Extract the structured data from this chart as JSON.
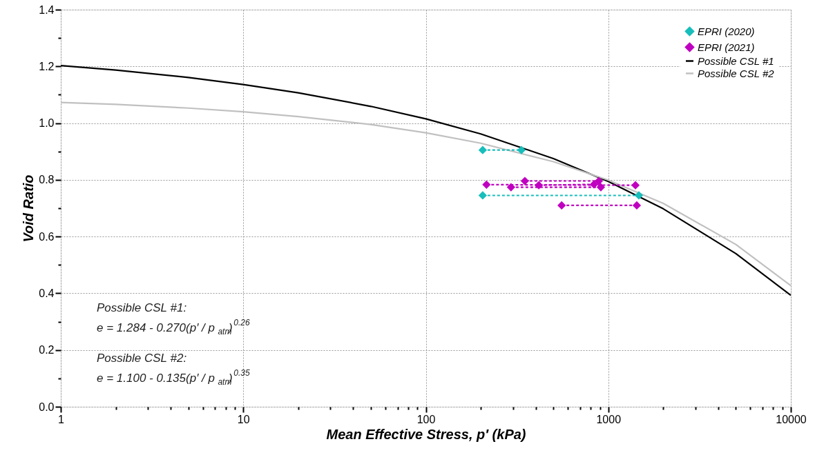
{
  "chart_data": {
    "type": "line",
    "xlabel": "Mean Effective Stress, p′ (kPa)",
    "ylabel": "Void Ratio",
    "log": "x",
    "xlim": [
      1,
      10000
    ],
    "ylim": [
      0,
      1.4
    ],
    "xticks": [
      1,
      {
        "value": 2,
        "label": null
      },
      {
        "value": 3,
        "label": null
      },
      {
        "value": 4,
        "label": null
      },
      {
        "value": 5,
        "label": null
      },
      {
        "value": 6,
        "label": null
      },
      {
        "value": 7,
        "label": null
      },
      {
        "value": 8,
        "label": null
      },
      {
        "value": 9,
        "label": null
      },
      10,
      {
        "value": 20,
        "label": null
      },
      {
        "value": 30,
        "label": null
      },
      {
        "value": 40,
        "label": null
      },
      {
        "value": 50,
        "label": null
      },
      {
        "value": 60,
        "label": null
      },
      {
        "value": 70,
        "label": null
      },
      {
        "value": 80,
        "label": null
      },
      {
        "value": 90,
        "label": null
      },
      100,
      {
        "value": 200,
        "label": null
      },
      {
        "value": 300,
        "label": null
      },
      {
        "value": 400,
        "label": null
      },
      {
        "value": 500,
        "label": null
      },
      {
        "value": 600,
        "label": null
      },
      {
        "value": 700,
        "label": null
      },
      {
        "value": 800,
        "label": null
      },
      {
        "value": 900,
        "label": null
      },
      1000,
      {
        "value": 2000,
        "label": null
      },
      {
        "value": 3000,
        "label": null
      },
      {
        "value": 4000,
        "label": null
      },
      {
        "value": 5000,
        "label": null
      },
      {
        "value": 6000,
        "label": null
      },
      {
        "value": 7000,
        "label": null
      },
      {
        "value": 8000,
        "label": null
      },
      {
        "value": 9000,
        "label": null
      },
      10000
    ],
    "yticks": [
      {
        "value": 0,
        "label": "0.0"
      },
      {
        "value": 0.1,
        "label": null
      },
      {
        "value": 0.2,
        "label": "0.2"
      },
      {
        "value": 0.3,
        "label": null
      },
      {
        "value": 0.4,
        "label": "0.4"
      },
      {
        "value": 0.5,
        "label": null
      },
      {
        "value": 0.6,
        "label": "0.6"
      },
      {
        "value": 0.7,
        "label": null
      },
      {
        "value": 0.8,
        "label": "0.8"
      },
      {
        "value": 0.9,
        "label": null
      },
      {
        "value": 1.0,
        "label": "1.0"
      },
      {
        "value": 1.1,
        "label": null
      },
      {
        "value": 1.2,
        "label": "1.2"
      },
      {
        "value": 1.3,
        "label": null
      },
      {
        "value": 1.4,
        "label": "1.4"
      }
    ],
    "grid": true,
    "legend": "top right",
    "series": [
      {
        "name": "EPRI (2020)",
        "color": "#17bebb",
        "marker": "diamond",
        "line_style": "dashed",
        "x": [
          205,
          334,
          null,
          205,
          1470
        ],
        "values": [
          0.905,
          0.905,
          null,
          0.745,
          0.745
        ]
      },
      {
        "name": "EPRI (2021)",
        "color": "#c000c0",
        "marker": "diamond",
        "line_style": "dashed",
        "x": [
          215,
          1408,
          null,
          293,
          910,
          null,
          349,
          887,
          null,
          416,
          834,
          null,
          555,
          1432
        ],
        "values": [
          0.783,
          0.781,
          null,
          0.774,
          0.774,
          null,
          0.796,
          0.796,
          null,
          0.781,
          0.784,
          null,
          0.71,
          0.71
        ]
      },
      {
        "name": "Possible CSL #1",
        "color": "#000000",
        "line_style": "solid",
        "x": [
          1,
          2,
          5,
          10,
          20,
          50,
          100,
          200,
          500,
          1000,
          2000,
          5000,
          10000
        ],
        "values": [
          1.203,
          1.187,
          1.161,
          1.136,
          1.107,
          1.059,
          1.015,
          0.962,
          0.875,
          0.794,
          0.698,
          0.54,
          0.393
        ]
      },
      {
        "name": "Possible CSL #2",
        "color": "#c0c0c0",
        "line_style": "solid",
        "x": [
          1,
          2,
          5,
          10,
          20,
          50,
          100,
          200,
          500,
          1000,
          2000,
          5000,
          10000
        ],
        "values": [
          1.073,
          1.066,
          1.053,
          1.04,
          1.023,
          0.995,
          0.966,
          0.929,
          0.864,
          0.799,
          0.717,
          0.572,
          0.427
        ]
      }
    ],
    "annotations": [
      "Possible CSL #1:",
      "e = 1.284 - 0.270(p′ / p$_{atm}$)$^{0.26}$",
      "Possible CSL #2:",
      "e = 1.100 - 0.135(p′ / p$_{atm}$)$^{0.35}$"
    ]
  }
}
